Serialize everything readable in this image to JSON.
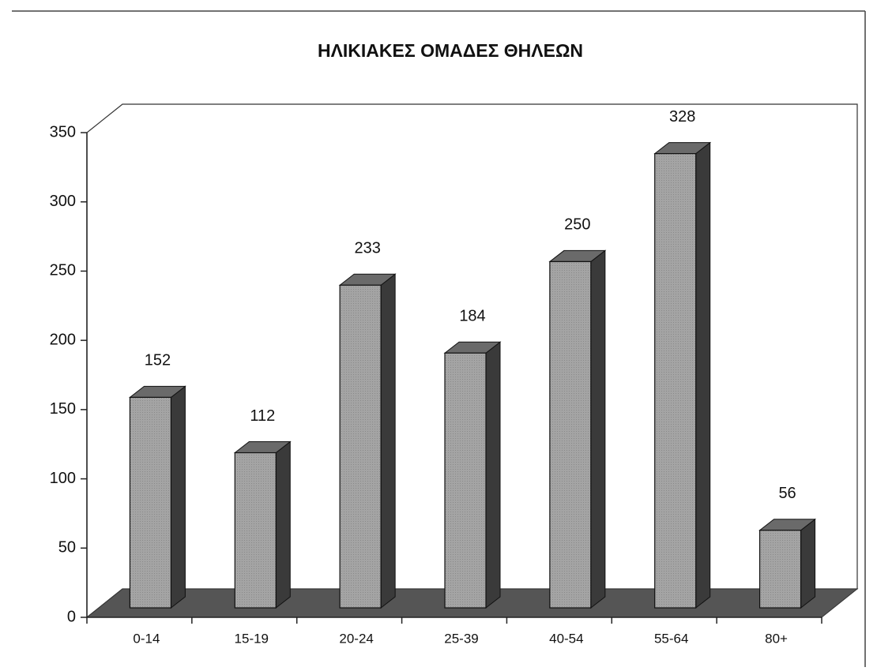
{
  "chart_data": {
    "type": "bar3d",
    "title": "ΗΛΙΚΙΑΚΕΣ ΟΜΑΔΕΣ ΘΗΛΕΩΝ",
    "categories": [
      "0-14",
      "15-19",
      "20-24",
      "25-39",
      "40-54",
      "55-64",
      "80+"
    ],
    "values": [
      152,
      112,
      233,
      184,
      250,
      328,
      56
    ],
    "color": "#a0a0a0",
    "ylim": [
      0,
      350
    ],
    "yticks": [
      0,
      50,
      100,
      150,
      200,
      250,
      300,
      350
    ]
  }
}
